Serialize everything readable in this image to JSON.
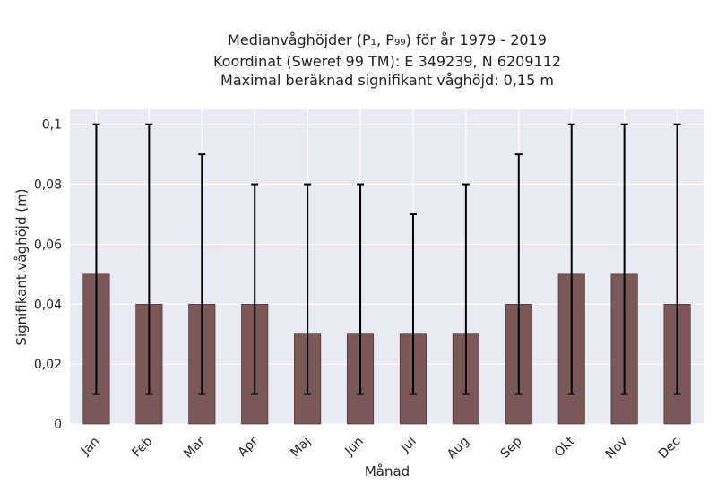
{
  "chart_data": {
    "type": "bar",
    "title_lines": [
      "Medianvåghöjder (P₁, P₉₉) för år 1979 - 2019",
      "Koordinat (Sweref 99 TM): E 349239, N 6209112",
      "Maximal beräknad signifikant våghöjd: 0,15 m"
    ],
    "xlabel": "Månad",
    "ylabel": "Signifikant våghöjd (m)",
    "categories": [
      "Jan",
      "Feb",
      "Mar",
      "Apr",
      "Maj",
      "Jun",
      "Jul",
      "Aug",
      "Sep",
      "Okt",
      "Nov",
      "Dec"
    ],
    "values": [
      0.05,
      0.04,
      0.04,
      0.04,
      0.03,
      0.03,
      0.03,
      0.03,
      0.04,
      0.05,
      0.05,
      0.04
    ],
    "error_low": [
      0.01,
      0.01,
      0.01,
      0.01,
      0.01,
      0.01,
      0.01,
      0.01,
      0.01,
      0.01,
      0.01,
      0.01
    ],
    "error_high": [
      0.1,
      0.1,
      0.09,
      0.08,
      0.08,
      0.08,
      0.07,
      0.08,
      0.09,
      0.1,
      0.1,
      0.1
    ],
    "ylim": [
      0,
      0.105
    ],
    "yticks": [
      0,
      0.02,
      0.04,
      0.06,
      0.08,
      0.1
    ],
    "ytick_labels": [
      "0",
      "0,02",
      "0,04",
      "0,06",
      "0,08",
      "0,1"
    ],
    "grid": true,
    "colors": {
      "bar": "#7a5858",
      "bar_edge": "#3a2a2a",
      "plot_bg": "#eaeaf2",
      "grid": "#ffffff",
      "error": "#000000"
    }
  }
}
